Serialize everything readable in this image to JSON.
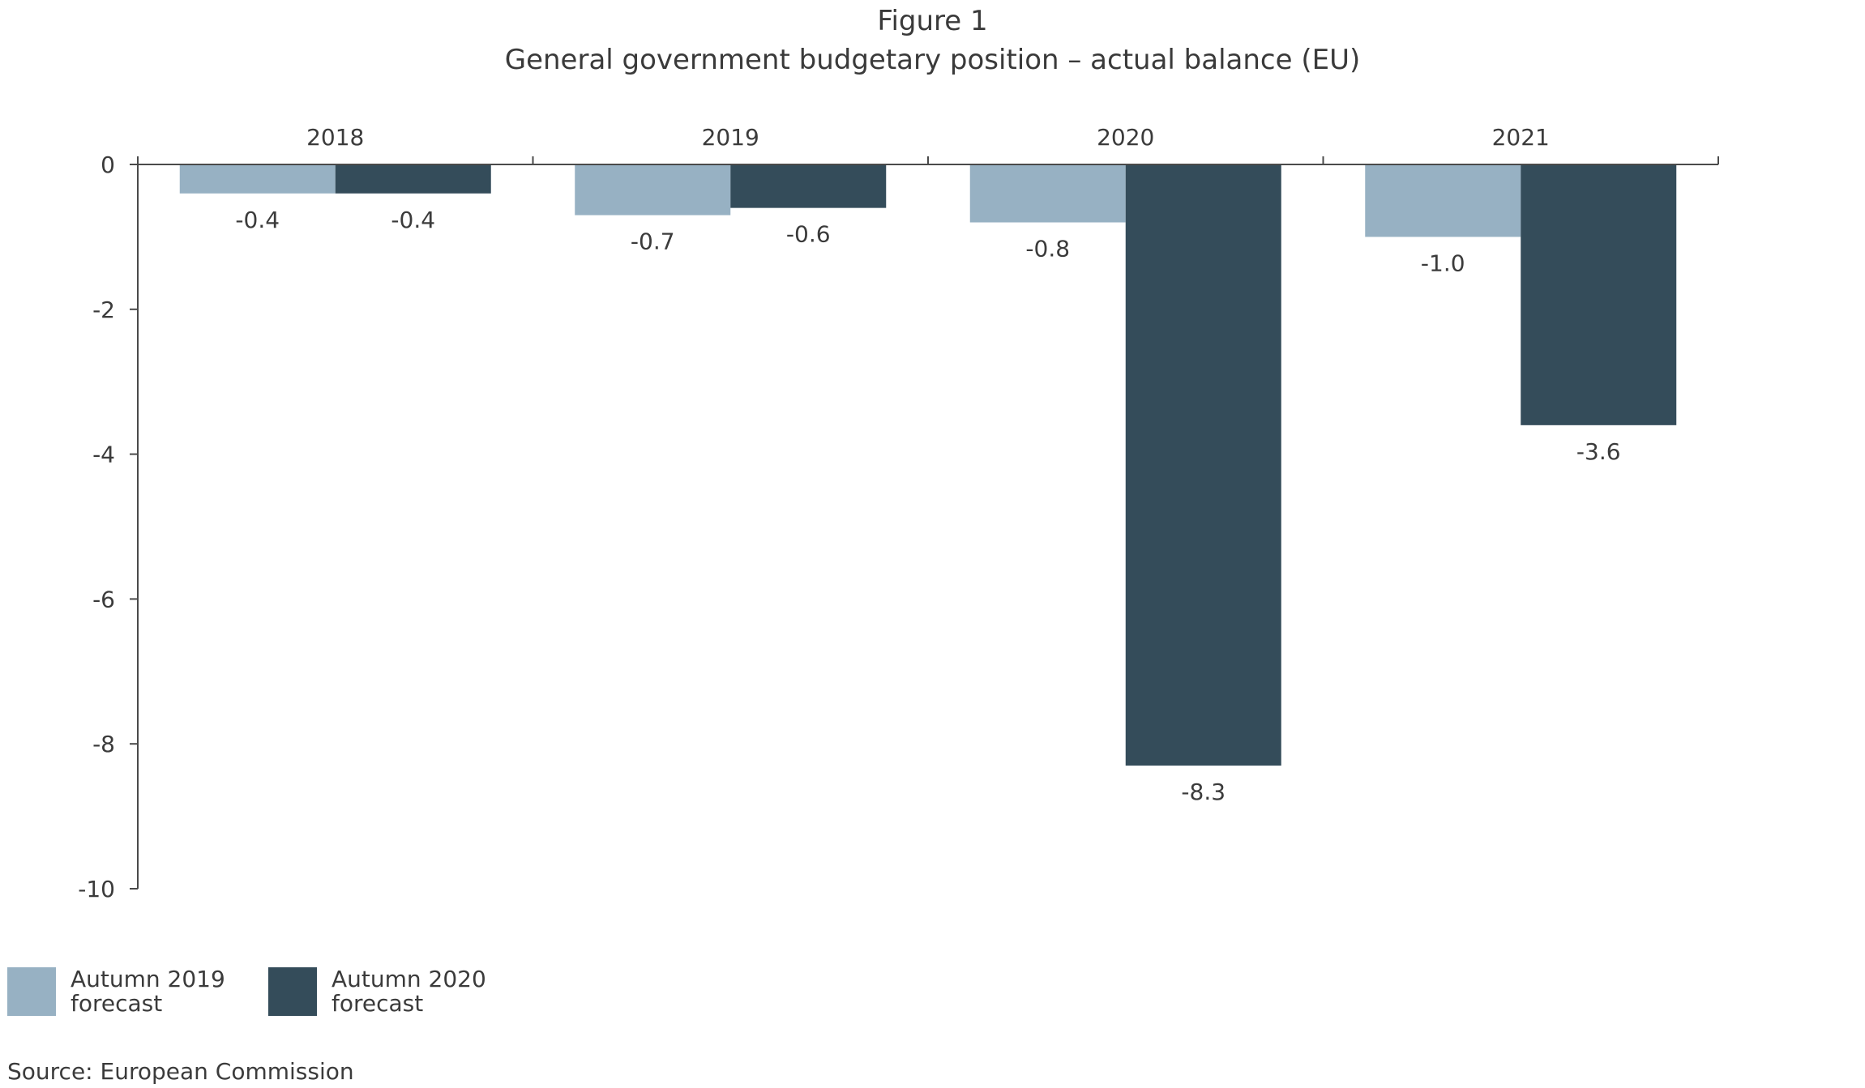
{
  "figure_label": "Figure 1",
  "title": "General government budgetary position – actual balance (EU)",
  "source": "Source: European Commission",
  "legend": [
    {
      "label": "Autumn 2019 forecast",
      "color": "#97b1c3"
    },
    {
      "label": "Autumn 2020 forecast",
      "color": "#344c5a"
    }
  ],
  "chart_data": {
    "type": "bar",
    "title": "General government budgetary position – actual balance (EU)",
    "xlabel": "",
    "ylabel": "",
    "categories": [
      "2018",
      "2019",
      "2020",
      "2021"
    ],
    "x_axis_position": "top",
    "ylim": [
      -10,
      0
    ],
    "yticks": [
      0,
      -2,
      -4,
      -6,
      -8,
      -10
    ],
    "ytick_labels": [
      "0",
      "-2",
      "-4",
      "-6",
      "-8",
      "-10"
    ],
    "legend_position": "bottom-left",
    "grid": false,
    "series": [
      {
        "name": "Autumn 2019 forecast",
        "color": "#97b1c3",
        "values": [
          -0.4,
          -0.7,
          -0.8,
          -1.0
        ],
        "labels": [
          "-0.4",
          "-0.7",
          "-0.8",
          "-1.0"
        ]
      },
      {
        "name": "Autumn 2020 forecast",
        "color": "#344c5a",
        "values": [
          -0.4,
          -0.6,
          -8.3,
          -3.6
        ],
        "labels": [
          "-0.4",
          "-0.6",
          "-8.3",
          "-3.6"
        ]
      }
    ]
  }
}
